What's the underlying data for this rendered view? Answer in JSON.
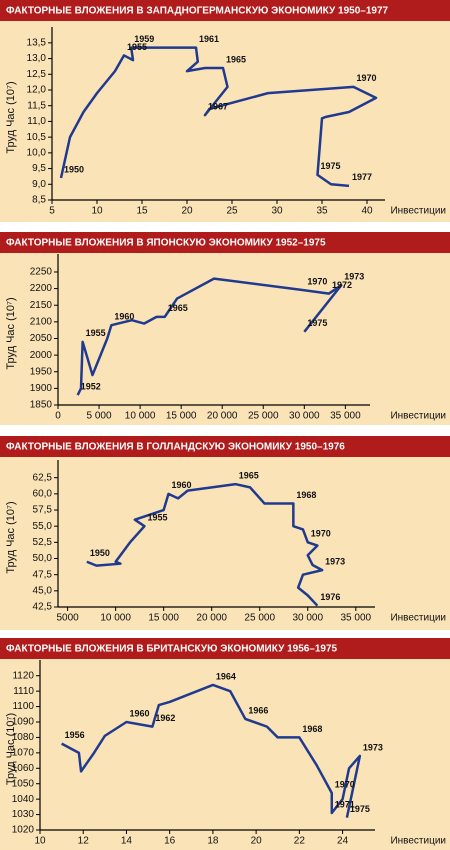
{
  "chart_data": [
    {
      "type": "line",
      "title": "ФАКТОРНЫЕ ВЛОЖЕНИЯ В ЗАПАДНОГЕРМАНСКУЮ ЭКОНОМИКУ 1950–1977",
      "x_label": "Инвестиции",
      "y_label": "Труд Час (10⁷)",
      "color": "#1f3a8f",
      "x": [
        6,
        7,
        8.5,
        10,
        12,
        13,
        14,
        13.8,
        21,
        21.2,
        20,
        22,
        24,
        24.5,
        22,
        22.5,
        29,
        38.5,
        41,
        38,
        35.5,
        35,
        34.5,
        36,
        38
      ],
      "y": [
        9.2,
        10.5,
        11.3,
        11.9,
        12.6,
        13.1,
        12.95,
        13.35,
        13.35,
        12.9,
        12.6,
        12.7,
        12.7,
        12.1,
        11.2,
        11.4,
        11.9,
        12.1,
        11.75,
        11.3,
        11.15,
        11.1,
        9.3,
        9.0,
        8.95
      ],
      "point_labels": [
        "1950",
        null,
        null,
        null,
        null,
        "1955",
        null,
        "1959",
        "1961",
        null,
        null,
        null,
        "1965",
        null,
        "1967",
        null,
        null,
        "1970",
        null,
        null,
        null,
        null,
        "1975",
        null,
        "1977"
      ],
      "xlim": [
        5,
        42
      ],
      "ylim": [
        8.5,
        13.75
      ],
      "xticks": [
        5,
        10,
        15,
        20,
        25,
        30,
        35,
        40
      ],
      "yticks": [
        {
          "value": 8.5,
          "label": "8,5"
        },
        {
          "value": 9,
          "label": "9,0"
        },
        {
          "value": 9.5,
          "label": "9,5"
        },
        {
          "value": 10,
          "label": "10,0"
        },
        {
          "value": 10.5,
          "label": "10,5"
        },
        {
          "value": 11,
          "label": "11,0"
        },
        {
          "value": 11.5,
          "label": "11,5"
        },
        {
          "value": 12,
          "label": "12,0"
        },
        {
          "value": 12.5,
          "label": "12,5"
        },
        {
          "value": 13,
          "label": "13,0"
        },
        {
          "value": 13.5,
          "label": "13,5"
        }
      ]
    },
    {
      "type": "line",
      "title": "ФАКТОРНЫЕ ВЛОЖЕНИЯ В ЯПОНСКУЮ ЭКОНОМИКУ 1952–1975",
      "x_label": "Инвестиции",
      "y_label": "Труд Час (10⁷)",
      "color": "#1f3a8f",
      "x": [
        2400,
        2800,
        3000,
        4200,
        6000,
        6500,
        9000,
        10500,
        12000,
        13000,
        14500,
        19000,
        30000,
        33000,
        34500,
        30000
      ],
      "y": [
        1880,
        1900,
        2040,
        1940,
        2050,
        2090,
        2105,
        2095,
        2115,
        2115,
        2170,
        2230,
        2195,
        2185,
        2210,
        2070
      ],
      "point_labels": [
        "1952",
        null,
        "1955",
        null,
        null,
        "1960",
        null,
        null,
        null,
        "1965",
        null,
        null,
        "1970",
        "1972",
        "1973",
        "1975"
      ],
      "xlim": [
        0,
        38000
      ],
      "ylim": [
        1850,
        2280
      ],
      "xticks": [
        0,
        {
          "value": 5000,
          "label": "5 000"
        },
        {
          "value": 10000,
          "label": "10 000"
        },
        {
          "value": 15000,
          "label": "15 000"
        },
        {
          "value": 20000,
          "label": "20 000"
        },
        {
          "value": 25000,
          "label": "25 000"
        },
        {
          "value": 30000,
          "label": "30 000"
        },
        {
          "value": 35000,
          "label": "35 000"
        }
      ],
      "yticks": [
        1850,
        1900,
        1950,
        2000,
        2050,
        2100,
        2150,
        2200,
        2250
      ]
    },
    {
      "type": "line",
      "title": "ФАКТОРНЫЕ ВЛОЖЕНИЯ В ГОЛЛАНДСКУЮ ЭКОНОМИКУ 1950–1976",
      "x_label": "Инвестиции",
      "y_label": "Труд Час (10⁷)",
      "color": "#1f3a8f",
      "x": [
        7000,
        8000,
        10500,
        10000,
        11500,
        13000,
        12000,
        15000,
        15500,
        16500,
        17500,
        22500,
        24000,
        25500,
        28500,
        28500,
        29500,
        30000,
        31000,
        30000,
        30500,
        31500,
        29500,
        29000,
        30000,
        31000
      ],
      "y": [
        49.5,
        48.9,
        49.2,
        49.5,
        52.5,
        55,
        56,
        57.5,
        60,
        59.3,
        60.5,
        61.5,
        61,
        58.5,
        58.5,
        55,
        54.5,
        52.5,
        52,
        50.5,
        49,
        48.2,
        47.5,
        45.5,
        44.3,
        42.7
      ],
      "point_labels": [
        "1950",
        null,
        null,
        null,
        null,
        "1955",
        null,
        null,
        "1960",
        null,
        null,
        "1965",
        null,
        null,
        "1968",
        null,
        null,
        "1970",
        null,
        null,
        null,
        "1973",
        null,
        null,
        null,
        "1976"
      ],
      "xlim": [
        4000,
        37000
      ],
      "ylim": [
        42.5,
        64
      ],
      "xticks": [
        5000,
        {
          "value": 10000,
          "label": "10 000"
        },
        {
          "value": 15000,
          "label": "15 000"
        },
        {
          "value": 20000,
          "label": "20 000"
        },
        {
          "value": 25000,
          "label": "25 000"
        },
        {
          "value": 30000,
          "label": "30 000"
        },
        {
          "value": 35000,
          "label": "35 000"
        }
      ],
      "yticks": [
        {
          "value": 42.5,
          "label": "42,5"
        },
        {
          "value": 45,
          "label": "45,0"
        },
        {
          "value": 47.5,
          "label": "47,5"
        },
        {
          "value": 50,
          "label": "50,0"
        },
        {
          "value": 52.5,
          "label": "52,5"
        },
        {
          "value": 55,
          "label": "55,0"
        },
        {
          "value": 57.5,
          "label": "57,5"
        },
        {
          "value": 60,
          "label": "60,0"
        },
        {
          "value": 62.5,
          "label": "62,5"
        }
      ]
    },
    {
      "type": "line",
      "title": "ФАКТОРНЫЕ ВЛОЖЕНИЯ В БРИТАНСКУЮ ЭКОНОМИКУ 1956–1975",
      "x_label": "Инвестиции",
      "y_label": "Труд Час (10⁷)",
      "color": "#1f3a8f",
      "x": [
        11,
        11.8,
        11.9,
        12.5,
        13,
        14,
        15.2,
        15.5,
        16,
        18,
        18.8,
        19.5,
        20.5,
        21,
        22,
        22.8,
        23.5,
        23.5,
        24,
        24.3,
        24.8,
        24.2
      ],
      "y": [
        1076,
        1070,
        1058,
        1070,
        1081,
        1090,
        1087,
        1101,
        1103,
        1114,
        1110,
        1092,
        1087,
        1080,
        1080,
        1062,
        1044,
        1031,
        1040,
        1060,
        1068,
        1028
      ],
      "point_labels": [
        "1956",
        null,
        null,
        null,
        null,
        "1960",
        "1962",
        null,
        null,
        "1964",
        null,
        "1966",
        null,
        null,
        "1968",
        null,
        "1970",
        "1971",
        null,
        null,
        "1973",
        "1975"
      ],
      "xlim": [
        10,
        25.5
      ],
      "ylim": [
        1020,
        1125
      ],
      "xticks": [
        10,
        12,
        14,
        16,
        18,
        20,
        22,
        24
      ],
      "yticks": [
        1020,
        1030,
        1040,
        1050,
        1060,
        1070,
        1080,
        1090,
        1100,
        1110,
        1120
      ]
    }
  ]
}
